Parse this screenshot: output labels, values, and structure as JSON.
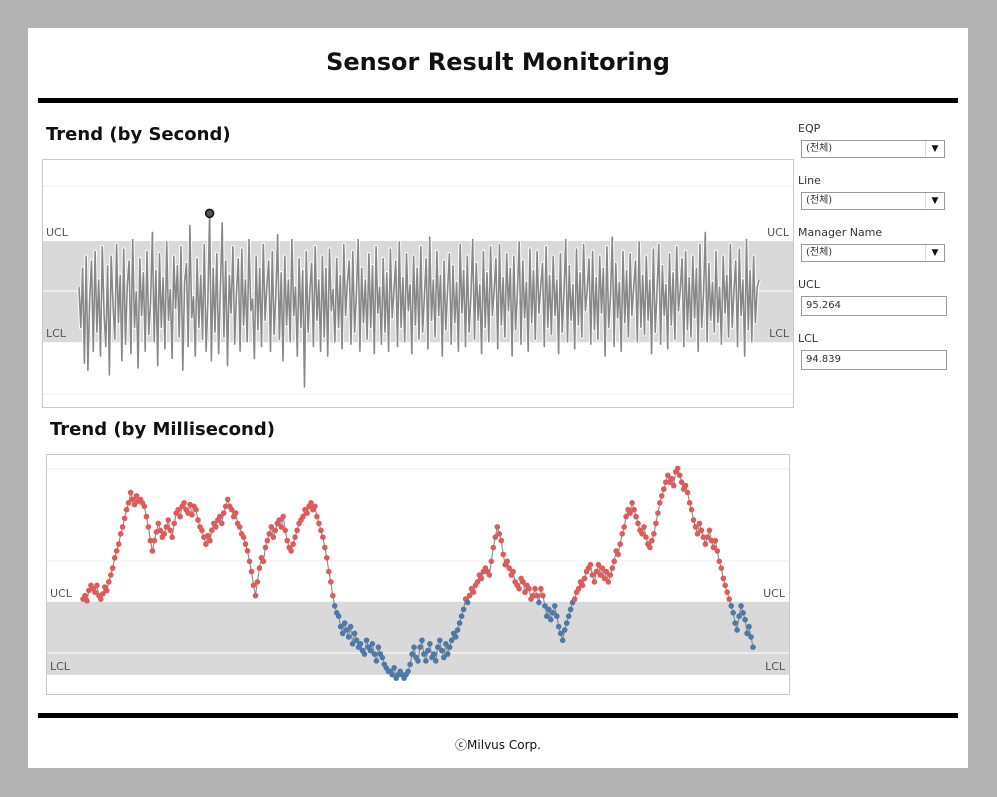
{
  "page": {
    "title": "Sensor Result Monitoring",
    "footer": "ⓒMilvus Corp."
  },
  "filters": {
    "eqp": {
      "label": "EQP",
      "value": "(전체)"
    },
    "line": {
      "label": "Line",
      "value": "(전체)"
    },
    "manager": {
      "label": "Manager Name",
      "value": "(전체)"
    },
    "ucl": {
      "label": "UCL",
      "value": "95.264"
    },
    "lcl": {
      "label": "LCL",
      "value": "94.839"
    }
  },
  "colors": {
    "band": "#d9d9d9",
    "line_gray": "#888888",
    "above_ucl": "#e05a5a",
    "in_band": "#4e79a7"
  },
  "chart_data": [
    {
      "type": "line",
      "title": "Trend (by Second)",
      "ucl_label": "UCL",
      "lcl_label": "LCL",
      "ucl": 95.264,
      "lcl": 94.839,
      "ylim": [
        94.62,
        95.55
      ],
      "grid": true,
      "values": [
        95.07,
        94.9,
        95.15,
        94.75,
        95.2,
        94.72,
        95.02,
        95.18,
        94.8,
        95.22,
        94.88,
        95.1,
        94.78,
        95.24,
        94.95,
        94.82,
        95.16,
        94.7,
        95.2,
        95.0,
        94.85,
        95.25,
        94.92,
        95.12,
        94.76,
        95.23,
        94.83,
        95.08,
        95.18,
        94.79,
        95.27,
        94.9,
        95.05,
        94.73,
        95.19,
        94.95,
        95.13,
        94.8,
        95.22,
        94.87,
        95.01,
        95.3,
        94.84,
        95.14,
        94.74,
        95.21,
        94.9,
        95.11,
        94.81,
        95.26,
        94.93,
        95.06,
        94.77,
        95.2,
        94.98,
        95.16,
        94.86,
        95.24,
        94.72,
        95.09,
        95.17,
        94.82,
        95.33,
        94.94,
        95.03,
        94.78,
        95.19,
        94.9,
        95.12,
        94.85,
        95.25,
        94.8,
        95.0,
        95.38,
        94.76,
        95.15,
        94.88,
        95.21,
        94.79,
        95.07,
        95.34,
        94.86,
        95.18,
        94.74,
        95.12,
        94.96,
        95.24,
        94.83,
        95.05,
        95.19,
        94.8,
        95.23,
        94.91,
        95.1,
        94.84,
        95.27,
        94.97,
        95.02,
        94.77,
        95.2,
        94.89,
        95.15,
        94.82,
        95.25,
        94.93,
        95.08,
        95.18,
        94.8,
        95.22,
        94.87,
        95.03,
        95.29,
        94.85,
        95.13,
        94.76,
        95.2,
        94.91,
        95.1,
        94.84,
        95.27,
        94.95,
        95.07,
        94.78,
        95.19,
        94.9,
        95.14,
        94.65,
        95.22,
        94.88,
        95.05,
        95.17,
        94.82,
        95.24,
        94.93,
        95.1,
        94.8,
        95.2,
        94.86,
        95.15,
        94.78,
        95.23,
        94.97,
        95.06,
        94.84,
        95.19,
        94.9,
        95.12,
        94.81,
        95.25,
        94.95,
        95.09,
        95.18,
        94.83,
        95.22,
        94.88,
        95.04,
        95.27,
        94.8,
        95.15,
        94.92,
        95.1,
        94.85,
        95.21,
        94.9,
        95.16,
        94.79,
        95.24,
        94.96,
        95.07,
        94.83,
        95.19,
        94.88,
        95.13,
        94.8,
        95.23,
        94.94,
        95.05,
        95.18,
        94.82,
        95.26,
        94.9,
        95.11,
        94.84,
        95.21,
        94.97,
        95.08,
        94.79,
        95.2,
        94.91,
        95.15,
        94.85,
        95.24,
        94.88,
        95.03,
        95.19,
        94.81,
        95.28,
        94.93,
        95.1,
        94.86,
        95.22,
        94.95,
        95.12,
        94.78,
        95.18,
        94.89,
        95.06,
        95.21,
        94.83,
        95.16,
        94.92,
        95.09,
        94.8,
        95.25,
        94.96,
        95.14,
        94.82,
        95.2,
        94.88,
        95.03,
        95.27,
        94.85,
        95.17,
        94.93,
        95.08,
        94.79,
        95.22,
        94.9,
        95.13,
        94.84,
        95.24,
        94.95,
        95.06,
        95.19,
        94.81,
        95.25,
        94.91,
        95.11,
        94.86,
        95.21,
        94.97,
        95.15,
        94.78,
        95.2,
        94.89,
        95.05,
        95.26,
        94.83,
        95.18,
        94.94,
        95.09,
        94.8,
        95.23,
        94.92,
        95.14,
        94.85,
        95.22,
        94.96,
        95.07,
        95.17,
        94.82,
        95.24,
        94.9,
        95.12,
        94.87,
        95.2,
        94.95,
        95.1,
        94.79,
        95.21,
        94.88,
        95.04,
        95.27,
        94.84,
        95.16,
        94.93,
        95.08,
        94.81,
        95.23,
        94.91,
        95.13,
        94.86,
        95.25,
        94.97,
        95.06,
        95.19,
        94.83,
        95.22,
        94.89,
        95.11,
        94.85,
        95.2,
        94.96,
        95.15,
        94.78,
        95.24,
        94.9,
        95.03,
        95.28,
        94.82,
        95.17,
        94.94,
        95.09,
        94.8,
        95.22,
        94.92,
        95.14,
        94.86,
        95.21,
        94.95,
        95.07,
        95.18,
        94.84,
        95.26,
        94.9,
        95.12,
        94.87,
        95.2,
        94.93,
        95.1,
        94.79,
        95.23,
        94.88,
        95.05,
        95.25,
        94.83,
        95.16,
        94.95,
        95.08,
        94.81,
        95.21,
        94.91,
        95.13,
        94.85,
        95.24,
        94.97,
        95.06,
        95.19,
        94.82,
        95.22,
        94.89,
        95.11,
        94.86,
        95.2,
        94.94,
        95.15,
        94.8,
        95.25,
        94.9,
        95.04,
        95.3,
        94.84,
        95.17,
        94.93,
        95.09,
        94.88,
        95.22,
        94.92,
        95.07,
        94.83,
        95.2,
        94.96,
        95.12,
        94.86,
        95.25,
        94.9,
        95.05,
        95.18,
        94.82,
        95.23,
        94.95,
        95.1,
        94.78,
        95.27,
        94.89,
        95.14,
        94.84,
        95.2,
        94.92,
        95.07,
        95.1
      ]
    },
    {
      "type": "scatter",
      "title": "Trend (by Millisecond)",
      "ucl_label": "UCL",
      "lcl_label": "LCL",
      "ucl": 95.264,
      "lcl": 94.839,
      "ylim": [
        94.78,
        96.06
      ],
      "grid": true,
      "values": [
        95.28,
        95.3,
        95.27,
        95.33,
        95.36,
        95.34,
        95.32,
        95.36,
        95.3,
        95.28,
        95.31,
        95.35,
        95.33,
        95.38,
        95.42,
        95.46,
        95.52,
        95.56,
        95.6,
        95.66,
        95.7,
        95.75,
        95.8,
        95.84,
        95.9,
        95.86,
        95.83,
        95.88,
        95.85,
        95.86,
        95.84,
        95.82,
        95.76,
        95.7,
        95.62,
        95.56,
        95.62,
        95.67,
        95.72,
        95.68,
        95.64,
        95.66,
        95.7,
        95.74,
        95.68,
        95.64,
        95.72,
        95.78,
        95.8,
        95.76,
        95.82,
        95.84,
        95.8,
        95.78,
        95.83,
        95.77,
        95.82,
        95.8,
        95.74,
        95.7,
        95.68,
        95.64,
        95.6,
        95.65,
        95.62,
        95.68,
        95.72,
        95.7,
        95.74,
        95.76,
        95.72,
        95.78,
        95.82,
        95.86,
        95.82,
        95.8,
        95.76,
        95.78,
        95.72,
        95.7,
        95.66,
        95.64,
        95.6,
        95.56,
        95.5,
        95.44,
        95.36,
        95.3,
        95.38,
        95.46,
        95.52,
        95.5,
        95.58,
        95.62,
        95.66,
        95.7,
        95.64,
        95.68,
        95.72,
        95.74,
        95.7,
        95.76,
        95.68,
        95.62,
        95.58,
        95.56,
        95.6,
        95.64,
        95.68,
        95.72,
        95.74,
        95.76,
        95.8,
        95.78,
        95.82,
        95.84,
        95.8,
        95.82,
        95.76,
        95.72,
        95.68,
        95.64,
        95.58,
        95.52,
        95.44,
        95.38,
        95.3,
        95.24,
        95.2,
        95.18,
        95.12,
        95.08,
        95.14,
        95.1,
        95.06,
        95.12,
        95.02,
        95.08,
        95.04,
        95.0,
        95.02,
        94.98,
        94.96,
        95.04,
        95.0,
        94.98,
        95.02,
        94.96,
        94.92,
        95.0,
        94.96,
        94.94,
        94.9,
        94.88,
        94.86,
        94.86,
        94.84,
        94.88,
        94.82,
        94.84,
        94.86,
        94.84,
        94.82,
        94.84,
        94.86,
        94.9,
        94.96,
        95.0,
        94.94,
        94.92,
        95.0,
        95.04,
        94.96,
        94.92,
        94.98,
        95.02,
        94.94,
        94.96,
        94.92,
        95.0,
        95.04,
        94.98,
        94.94,
        95.02,
        94.96,
        95.0,
        95.04,
        95.08,
        95.06,
        95.1,
        95.14,
        95.18,
        95.22,
        95.28,
        95.26,
        95.3,
        95.34,
        95.32,
        95.36,
        95.38,
        95.42,
        95.4,
        95.44,
        95.46,
        95.44,
        95.42,
        95.5,
        95.58,
        95.64,
        95.7,
        95.66,
        95.62,
        95.54,
        95.48,
        95.5,
        95.46,
        95.42,
        95.44,
        95.38,
        95.36,
        95.34,
        95.4,
        95.38,
        95.32,
        95.36,
        95.34,
        95.28,
        95.3,
        95.34,
        95.3,
        95.26,
        95.34,
        95.3,
        95.24,
        95.18,
        95.22,
        95.16,
        95.2,
        95.24,
        95.18,
        95.12,
        95.08,
        95.04,
        95.1,
        95.14,
        95.18,
        95.22,
        95.26,
        95.28,
        95.32,
        95.34,
        95.38,
        95.36,
        95.4,
        95.44,
        95.46,
        95.48,
        95.42,
        95.38,
        95.44,
        95.48,
        95.42,
        95.46,
        95.4,
        95.44,
        95.38,
        95.42,
        95.46,
        95.5,
        95.56,
        95.54,
        95.6,
        95.66,
        95.7,
        95.76,
        95.8,
        95.78,
        95.84,
        95.8,
        95.76,
        95.72,
        95.68,
        95.66,
        95.7,
        95.64,
        95.6,
        95.58,
        95.62,
        95.66,
        95.72,
        95.78,
        95.84,
        95.88,
        95.92,
        95.96,
        96.0,
        95.96,
        95.98,
        95.94,
        96.02,
        96.04,
        96.0,
        95.96,
        95.92,
        95.94,
        95.9,
        95.84,
        95.8,
        95.74,
        95.7,
        95.66,
        95.72,
        95.68,
        95.64,
        95.6,
        95.64,
        95.68,
        95.62,
        95.58,
        95.62,
        95.56,
        95.5,
        95.46,
        95.4,
        95.36,
        95.32,
        95.28,
        95.24,
        95.2,
        95.14,
        95.1,
        95.18,
        95.24,
        95.2,
        95.16,
        95.08,
        95.12,
        95.06,
        95.0
      ]
    }
  ]
}
